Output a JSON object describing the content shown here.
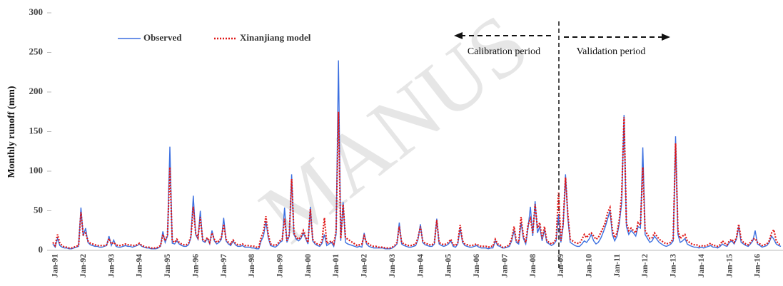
{
  "chart_data": {
    "type": "line",
    "ylabel": "Monthly runoff (mm)",
    "watermark": "MANUS",
    "annotations": [
      "Calibration period",
      "Validation period"
    ],
    "legend": "upper left",
    "ylim": [
      0,
      300
    ],
    "yticks": [
      0,
      50,
      100,
      150,
      200,
      250,
      300
    ],
    "categories": [
      "Jan-91",
      null,
      null,
      null,
      null,
      null,
      null,
      null,
      null,
      null,
      null,
      null,
      "Jan-92",
      null,
      null,
      null,
      null,
      null,
      null,
      null,
      null,
      null,
      null,
      null,
      "Jan-93",
      null,
      null,
      null,
      null,
      null,
      null,
      null,
      null,
      null,
      null,
      null,
      "Jan-94",
      null,
      null,
      null,
      null,
      null,
      null,
      null,
      null,
      null,
      null,
      null,
      "Jan-95",
      null,
      null,
      null,
      null,
      null,
      null,
      null,
      null,
      null,
      null,
      null,
      "Jan-96",
      null,
      null,
      null,
      null,
      null,
      null,
      null,
      null,
      null,
      null,
      null,
      "Jan-97",
      null,
      null,
      null,
      null,
      null,
      null,
      null,
      null,
      null,
      null,
      null,
      "Jan-98",
      null,
      null,
      null,
      null,
      null,
      null,
      null,
      null,
      null,
      null,
      null,
      "Jan-99",
      null,
      null,
      null,
      null,
      null,
      null,
      null,
      null,
      null,
      null,
      null,
      "Jan-00",
      null,
      null,
      null,
      null,
      null,
      null,
      null,
      null,
      null,
      null,
      null,
      "Jan-01",
      null,
      null,
      null,
      null,
      null,
      null,
      null,
      null,
      null,
      null,
      null,
      "Jan-02",
      null,
      null,
      null,
      null,
      null,
      null,
      null,
      null,
      null,
      null,
      null,
      "Jan-03",
      null,
      null,
      null,
      null,
      null,
      null,
      null,
      null,
      null,
      null,
      null,
      "Jan-04",
      null,
      null,
      null,
      null,
      null,
      null,
      null,
      null,
      null,
      null,
      null,
      "Jan-05",
      null,
      null,
      null,
      null,
      null,
      null,
      null,
      null,
      null,
      null,
      null,
      "Jan-06",
      null,
      null,
      null,
      null,
      null,
      null,
      null,
      null,
      null,
      null,
      null,
      "Jan-07",
      null,
      null,
      null,
      null,
      null,
      null,
      null,
      null,
      null,
      null,
      null,
      "Jan-08",
      null,
      null,
      null,
      null,
      null,
      null,
      null,
      null,
      null,
      null,
      null,
      "Jan-09",
      null,
      null,
      null,
      null,
      null,
      null,
      null,
      null,
      null,
      null,
      null,
      "Jan-10",
      null,
      null,
      null,
      null,
      null,
      null,
      null,
      null,
      null,
      null,
      null,
      "Jan-11",
      null,
      null,
      null,
      null,
      null,
      null,
      null,
      null,
      null,
      null,
      null,
      "Jan-12",
      null,
      null,
      null,
      null,
      null,
      null,
      null,
      null,
      null,
      null,
      null,
      "Jan-13",
      null,
      null,
      null,
      null,
      null,
      null,
      null,
      null,
      null,
      null,
      null,
      "Jan-14",
      null,
      null,
      null,
      null,
      null,
      null,
      null,
      null,
      null,
      null,
      null,
      "Jan-15",
      null,
      null,
      null,
      null,
      null,
      null,
      null,
      null,
      null,
      null,
      null,
      "Jan-16",
      null,
      null,
      null,
      null,
      null,
      null,
      null,
      null,
      null,
      null,
      null
    ],
    "series": [
      {
        "name": "Observed",
        "color": "#3b6fe0",
        "style": "solid",
        "values": [
          8,
          4,
          15,
          6,
          4,
          3,
          3,
          2,
          2,
          3,
          4,
          5,
          54,
          18,
          28,
          10,
          7,
          6,
          5,
          5,
          4,
          4,
          5,
          6,
          18,
          6,
          13,
          5,
          4,
          4,
          5,
          6,
          5,
          5,
          4,
          5,
          6,
          8,
          5,
          4,
          3,
          3,
          2,
          2,
          2,
          3,
          5,
          24,
          10,
          18,
          131,
          9,
          8,
          12,
          8,
          6,
          5,
          5,
          7,
          16,
          69,
          20,
          14,
          50,
          12,
          10,
          15,
          8,
          25,
          12,
          8,
          10,
          14,
          41,
          12,
          8,
          6,
          12,
          7,
          5,
          5,
          6,
          4,
          4,
          4,
          3,
          3,
          2,
          2,
          12,
          18,
          37,
          16,
          6,
          5,
          4,
          6,
          10,
          12,
          54,
          10,
          18,
          96,
          20,
          14,
          12,
          15,
          22,
          15,
          8,
          55,
          12,
          8,
          6,
          5,
          9,
          20,
          6,
          8,
          10,
          5,
          20,
          240,
          12,
          61,
          10,
          8,
          7,
          6,
          5,
          4,
          5,
          4,
          22,
          8,
          5,
          4,
          3,
          3,
          3,
          3,
          3,
          2,
          2,
          2,
          3,
          5,
          8,
          35,
          8,
          6,
          5,
          4,
          4,
          5,
          6,
          14,
          33,
          10,
          7,
          6,
          5,
          5,
          8,
          40,
          8,
          6,
          5,
          6,
          8,
          12,
          5,
          4,
          8,
          28,
          10,
          6,
          5,
          4,
          4,
          5,
          6,
          4,
          3,
          3,
          3,
          2,
          3,
          3,
          12,
          6,
          5,
          3,
          3,
          4,
          5,
          12,
          25,
          10,
          8,
          35,
          15,
          8,
          28,
          55,
          18,
          62,
          22,
          30,
          12,
          26,
          10,
          8,
          6,
          8,
          12,
          45,
          10,
          30,
          96,
          40,
          10,
          8,
          6,
          5,
          5,
          8,
          12,
          10,
          14,
          20,
          12,
          8,
          10,
          15,
          22,
          30,
          40,
          50,
          20,
          12,
          18,
          35,
          60,
          171,
          30,
          20,
          25,
          22,
          18,
          30,
          28,
          130,
          20,
          15,
          10,
          12,
          18,
          14,
          10,
          8,
          6,
          5,
          6,
          8,
          12,
          144,
          20,
          10,
          12,
          15,
          8,
          6,
          5,
          4,
          4,
          3,
          4,
          3,
          4,
          5,
          6,
          4,
          4,
          3,
          5,
          8,
          6,
          5,
          10,
          12,
          8,
          14,
          30,
          10,
          8,
          6,
          5,
          8,
          12,
          25,
          8,
          6,
          4,
          5,
          6,
          10,
          18,
          14,
          8,
          6,
          5
        ]
      },
      {
        "name": "Xinanjiang model",
        "color": "#e01515",
        "style": "dotted",
        "values": [
          10,
          6,
          20,
          9,
          6,
          4,
          4,
          3,
          3,
          4,
          5,
          6,
          48,
          20,
          22,
          12,
          9,
          8,
          7,
          6,
          6,
          6,
          6,
          7,
          15,
          8,
          10,
          7,
          6,
          6,
          7,
          8,
          7,
          7,
          6,
          6,
          7,
          9,
          6,
          5,
          4,
          4,
          3,
          3,
          3,
          4,
          6,
          20,
          12,
          20,
          105,
          12,
          10,
          14,
          10,
          8,
          7,
          7,
          9,
          18,
          55,
          22,
          16,
          42,
          14,
          12,
          16,
          10,
          22,
          14,
          10,
          12,
          16,
          33,
          14,
          10,
          8,
          13,
          9,
          7,
          7,
          8,
          6,
          6,
          6,
          5,
          5,
          4,
          4,
          16,
          24,
          43,
          20,
          8,
          7,
          6,
          8,
          12,
          14,
          40,
          12,
          20,
          90,
          22,
          16,
          14,
          17,
          25,
          17,
          10,
          52,
          14,
          10,
          8,
          7,
          12,
          41,
          9,
          10,
          12,
          8,
          25,
          175,
          15,
          58,
          16,
          14,
          12,
          10,
          8,
          6,
          7,
          8,
          18,
          10,
          8,
          6,
          5,
          5,
          4,
          4,
          4,
          3,
          3,
          3,
          4,
          6,
          10,
          30,
          10,
          8,
          7,
          6,
          6,
          7,
          8,
          16,
          30,
          12,
          9,
          8,
          7,
          7,
          10,
          38,
          10,
          8,
          7,
          8,
          10,
          14,
          7,
          6,
          10,
          32,
          12,
          8,
          7,
          6,
          6,
          7,
          8,
          6,
          5,
          5,
          5,
          4,
          5,
          5,
          14,
          8,
          7,
          4,
          4,
          5,
          7,
          15,
          30,
          12,
          10,
          42,
          18,
          10,
          32,
          40,
          22,
          58,
          28,
          35,
          15,
          30,
          12,
          10,
          8,
          10,
          14,
          73,
          12,
          35,
          92,
          45,
          14,
          12,
          10,
          9,
          9,
          14,
          20,
          16,
          20,
          22,
          18,
          14,
          16,
          22,
          28,
          35,
          48,
          54,
          26,
          16,
          22,
          40,
          70,
          168,
          35,
          25,
          28,
          25,
          22,
          35,
          32,
          105,
          25,
          20,
          15,
          16,
          22,
          18,
          14,
          12,
          10,
          8,
          9,
          10,
          15,
          135,
          25,
          15,
          18,
          20,
          12,
          10,
          8,
          7,
          7,
          5,
          6,
          5,
          6,
          7,
          9,
          6,
          6,
          5,
          7,
          12,
          9,
          7,
          12,
          14,
          10,
          16,
          33,
          14,
          10,
          8,
          7,
          10,
          14,
          15,
          10,
          8,
          6,
          7,
          8,
          12,
          22,
          26,
          12,
          8,
          7
        ]
      }
    ]
  }
}
